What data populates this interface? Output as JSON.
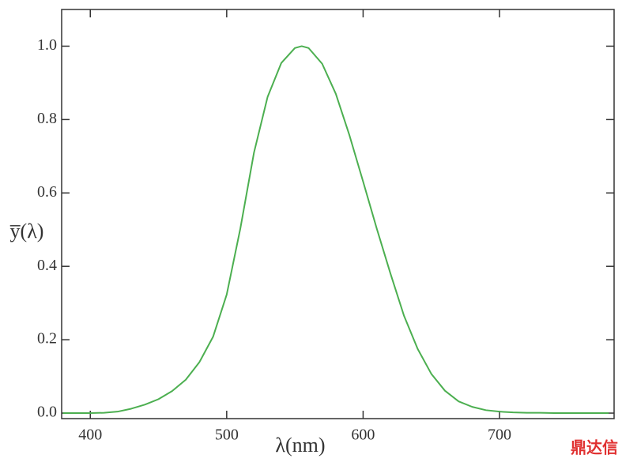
{
  "chart_data": {
    "type": "line",
    "x_label": "λ(nm)",
    "y_label": "y̅(λ)",
    "x": [
      380,
      390,
      400,
      410,
      420,
      430,
      440,
      450,
      460,
      470,
      480,
      490,
      500,
      510,
      520,
      530,
      540,
      550,
      555,
      560,
      570,
      580,
      590,
      600,
      610,
      620,
      630,
      640,
      650,
      660,
      670,
      680,
      690,
      700,
      710,
      720,
      730,
      740,
      750,
      760,
      770,
      780
    ],
    "series": [
      {
        "color": "#4caf50",
        "values": [
          0.0,
          0.0,
          0.0,
          0.001,
          0.004,
          0.012,
          0.023,
          0.038,
          0.06,
          0.091,
          0.139,
          0.208,
          0.323,
          0.503,
          0.71,
          0.862,
          0.954,
          0.995,
          1.0,
          0.995,
          0.952,
          0.87,
          0.757,
          0.631,
          0.503,
          0.381,
          0.265,
          0.175,
          0.107,
          0.061,
          0.032,
          0.017,
          0.008,
          0.004,
          0.002,
          0.001,
          0.001,
          0.0,
          0.0,
          0.0,
          0.0,
          0.0
        ]
      }
    ],
    "xlim": [
      379,
      784
    ],
    "ylim": [
      -0.015,
      1.1
    ],
    "xticks": [
      400,
      500,
      600,
      700
    ],
    "yticks": [
      {
        "value": 0,
        "label": "0.0"
      },
      {
        "value": 0.2,
        "label": "0.2"
      },
      {
        "value": 0.4,
        "label": "0.4"
      },
      {
        "value": 0.6,
        "label": "0.6"
      },
      {
        "value": 0.8,
        "label": "0.8"
      },
      {
        "value": 1.0,
        "label": "1.0"
      }
    ],
    "watermark": "鼎达信"
  }
}
